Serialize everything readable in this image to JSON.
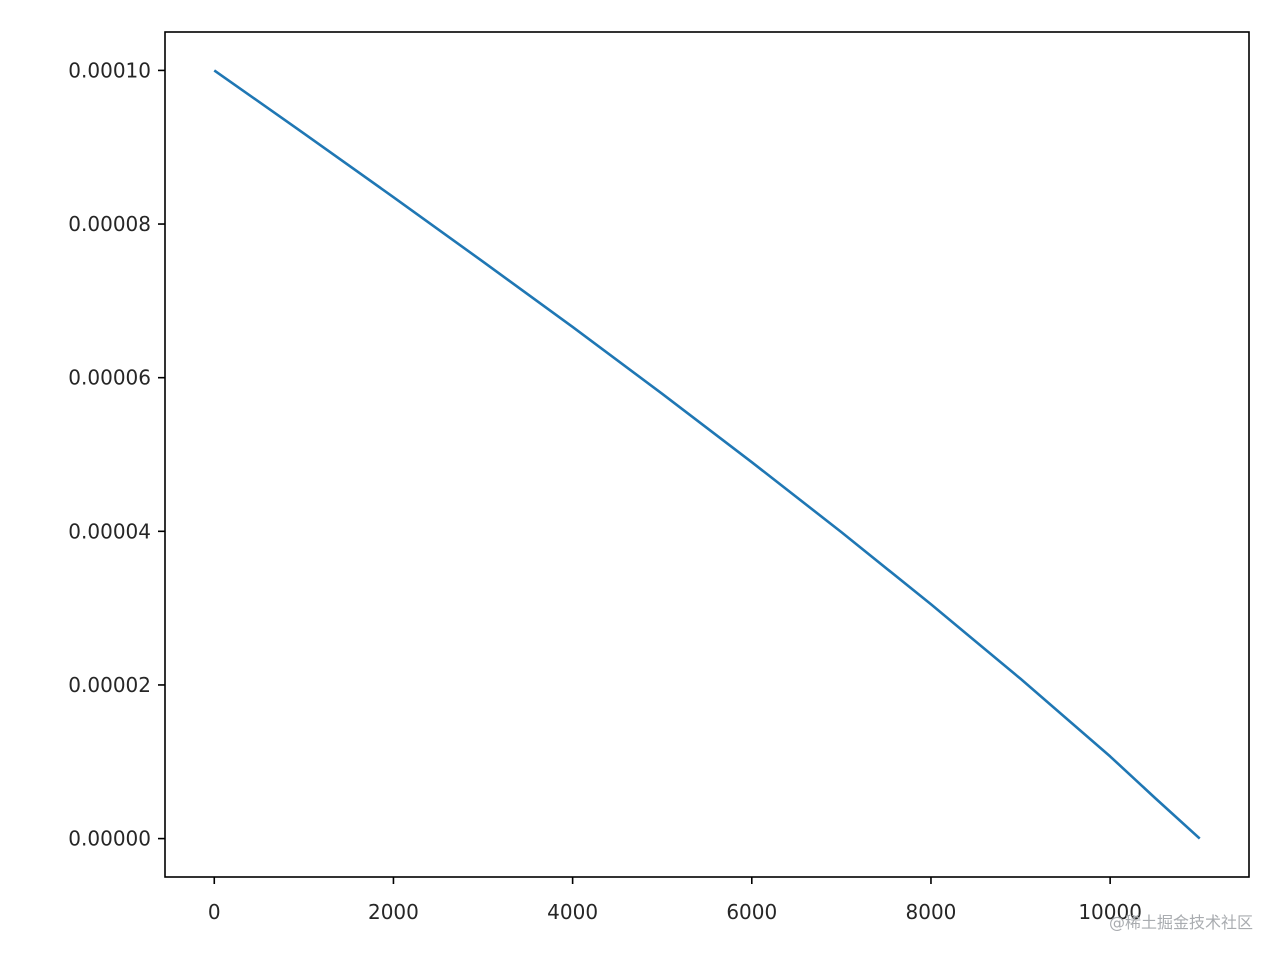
{
  "chart_data": {
    "type": "line",
    "title": "",
    "xlabel": "",
    "ylabel": "",
    "xlim": [
      -550,
      11550
    ],
    "ylim": [
      -5e-06,
      0.000105
    ],
    "grid": false,
    "x_ticks": [
      0,
      2000,
      4000,
      6000,
      8000,
      10000
    ],
    "x_tick_labels": [
      "0",
      "2000",
      "4000",
      "6000",
      "8000",
      "10000"
    ],
    "y_ticks": [
      0,
      2e-05,
      4e-05,
      6e-05,
      8e-05,
      0.0001
    ],
    "y_tick_labels": [
      "0.00000",
      "0.00002",
      "0.00004",
      "0.00006",
      "0.00008",
      "0.00010"
    ],
    "series": [
      {
        "color": "#1f77b4",
        "x": [
          0,
          1000,
          2000,
          3000,
          4000,
          5000,
          6000,
          7000,
          8000,
          9000,
          10000,
          10500,
          11000
        ],
        "y": [
          0.0001,
          9.18e-05,
          8.35e-05,
          7.51e-05,
          6.66e-05,
          5.79e-05,
          4.9e-05,
          3.99e-05,
          3.05e-05,
          2.08e-05,
          1.07e-05,
          5.3e-06,
          0
        ]
      }
    ]
  },
  "watermark": "@稀土掘金技术社区"
}
